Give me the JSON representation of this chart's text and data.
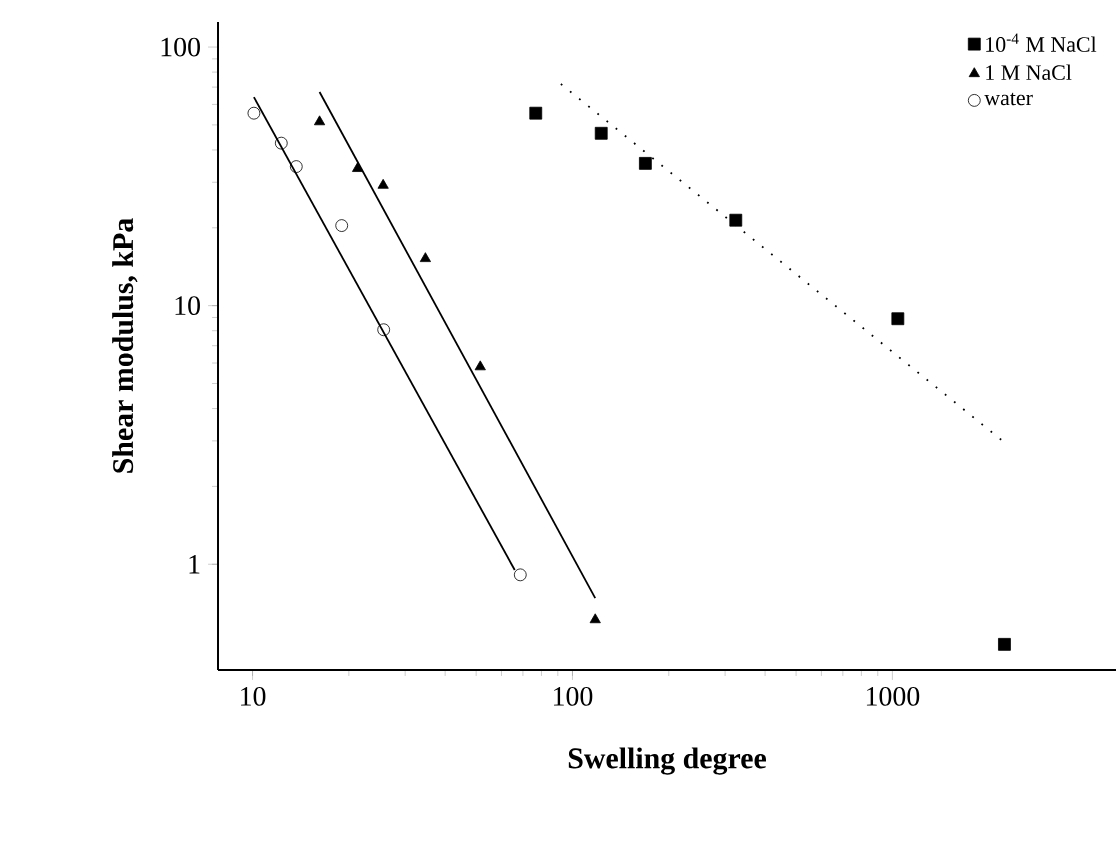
{
  "chart_data": {
    "type": "scatter",
    "xlabel": "Swelling degree",
    "ylabel": "Shear modulus, kPa",
    "log": "xy",
    "xlim": [
      7.8,
      5000
    ],
    "ylim": [
      0.39,
      125
    ],
    "xticks": [
      10,
      100,
      1000
    ],
    "yticks": [
      1,
      10,
      100
    ],
    "legend": "top right",
    "grid": false,
    "series": [
      {
        "name": "10$^{-4}$ M NaCl",
        "color": "#000000",
        "marker": "square",
        "x": [
          76.8,
          123,
          169,
          324,
          1040,
          2240
        ],
        "values": [
          55.5,
          46.4,
          35.5,
          21.4,
          8.9,
          0.49
        ]
      },
      {
        "name": "1 M NaCl",
        "color": "#000000",
        "marker": "triangle",
        "x": [
          16.2,
          21.3,
          25.6,
          34.7,
          51.5,
          117.8
        ],
        "values": [
          51.4,
          33.9,
          29.2,
          15.2,
          5.8,
          0.61
        ]
      },
      {
        "name": "water",
        "color": "#000000",
        "marker": "circle",
        "x": [
          10.1,
          12.3,
          13.7,
          19.0,
          25.7,
          68.7
        ],
        "values": [
          55.5,
          42.5,
          34.5,
          20.4,
          8.07,
          0.91
        ]
      },
      {
        "type": "line",
        "color": "#000000",
        "line_style": "dotted",
        "marker": "none",
        "x": [
          92,
          2210
        ],
        "values": [
          72,
          3.0
        ]
      },
      {
        "type": "line",
        "color": "#000000",
        "line_style": "solid",
        "marker": "none",
        "x": [
          16.2,
          117.8
        ],
        "values": [
          67,
          0.74
        ]
      },
      {
        "type": "line",
        "color": "#000000",
        "line_style": "solid",
        "marker": "none",
        "x": [
          10.1,
          66
        ],
        "values": [
          64,
          0.95
        ]
      }
    ]
  }
}
